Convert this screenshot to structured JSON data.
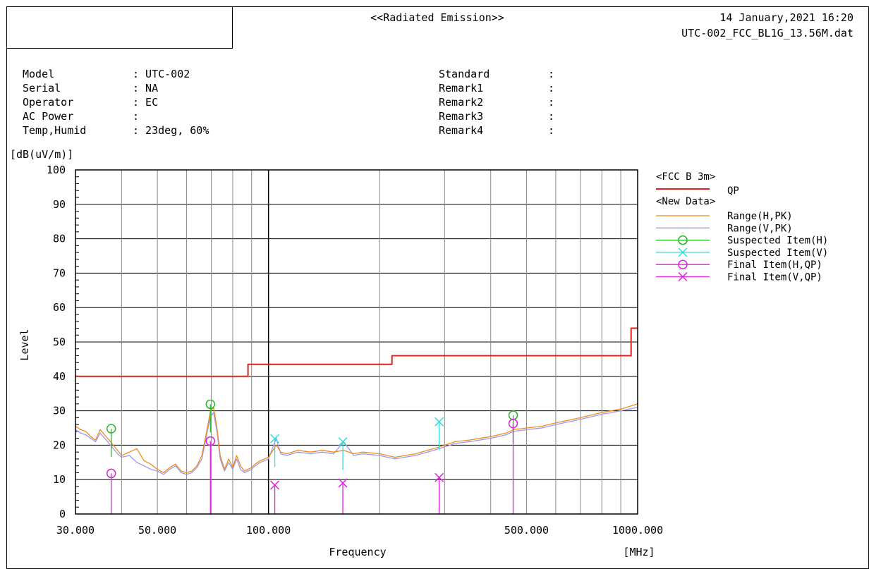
{
  "header": {
    "title": "<<Radiated Emission>>",
    "date": "14 January,2021 16:20",
    "file": "UTC-002_FCC_BL1G_13.56M.dat"
  },
  "info_left": [
    {
      "label": "Model",
      "value": ": UTC-002"
    },
    {
      "label": "Serial",
      "value": ": NA"
    },
    {
      "label": "Operator",
      "value": ": EC"
    },
    {
      "label": "AC Power",
      "value": ":"
    },
    {
      "label": "Temp,Humid",
      "value": ": 23deg, 60%"
    }
  ],
  "info_right": [
    {
      "label": "Standard",
      "value": ":"
    },
    {
      "label": "Remark1",
      "value": ":"
    },
    {
      "label": "Remark2",
      "value": ":"
    },
    {
      "label": "Remark3",
      "value": ":"
    },
    {
      "label": "Remark4",
      "value": ":"
    }
  ],
  "chart_data": {
    "type": "line",
    "xlabel": "Frequency",
    "xunit": "[MHz]",
    "ylabel": "Level",
    "yunit": "[dB(uV/m)]",
    "x_scale": "log",
    "xlim": [
      30,
      1000
    ],
    "ylim": [
      0,
      100
    ],
    "x_tick_labels": [
      "30.000",
      "50.000",
      "100.000",
      "500.000",
      "1000.000"
    ],
    "x_tick_values": [
      30,
      50,
      100,
      500,
      1000
    ],
    "y_ticks": [
      0,
      10,
      20,
      30,
      40,
      50,
      60,
      70,
      80,
      90,
      100
    ],
    "grid": true,
    "legend_position": "right",
    "legend": {
      "limit_header": "<FCC B  3m>",
      "data_header": "<New Data>"
    },
    "colors": {
      "limit": "#e0201c",
      "h_pk": "#f28a1e",
      "v_pk": "#9999ee",
      "suspect_h": "#22bb22",
      "suspect_v": "#33dddd",
      "final": "#dd22dd"
    },
    "limit_line": {
      "name": "QP",
      "x": [
        30,
        88,
        88,
        216,
        216,
        960,
        960,
        1000
      ],
      "y": [
        40.0,
        40.0,
        43.5,
        43.5,
        46.0,
        46.0,
        54.0,
        54.0
      ]
    },
    "series": [
      {
        "name": "Range(H,PK)",
        "x": [
          30,
          31,
          32,
          33,
          34,
          35,
          36,
          37,
          38,
          39,
          40,
          42,
          44,
          46,
          48,
          50,
          52,
          54,
          56,
          58,
          60,
          62,
          64,
          66,
          68,
          69.5,
          71,
          72.5,
          74,
          76,
          78,
          80,
          82,
          84,
          86,
          88,
          90,
          92,
          95,
          100,
          105,
          108,
          112,
          120,
          130,
          140,
          150,
          160,
          170,
          180,
          200,
          220,
          250,
          280,
          300,
          320,
          350,
          400,
          440,
          460,
          500,
          550,
          600,
          700,
          800,
          900,
          1000
        ],
        "y": [
          25.5,
          24.5,
          24.0,
          22.5,
          21.5,
          24.5,
          23.0,
          21.5,
          20.0,
          18.5,
          17.0,
          18.0,
          19.0,
          15.5,
          14.5,
          13.0,
          12.0,
          13.5,
          14.5,
          12.5,
          12.0,
          12.5,
          14.0,
          17.0,
          24.0,
          29.5,
          31.0,
          25.0,
          17.0,
          13.0,
          16.0,
          13.5,
          17.0,
          14.0,
          12.5,
          13.0,
          13.5,
          14.5,
          15.5,
          16.5,
          20.0,
          18.0,
          17.5,
          18.5,
          18.0,
          18.5,
          18.0,
          18.5,
          17.5,
          18.0,
          17.5,
          16.5,
          17.5,
          19.0,
          20.0,
          21.0,
          21.5,
          22.5,
          23.5,
          24.5,
          25.0,
          25.5,
          26.5,
          28.0,
          29.5,
          30.5,
          32.0
        ]
      },
      {
        "name": "Range(V,PK)",
        "x": [
          30,
          31,
          32,
          33,
          34,
          35,
          36,
          37,
          38,
          39,
          40,
          42,
          44,
          46,
          48,
          50,
          52,
          54,
          56,
          58,
          60,
          62,
          64,
          66,
          68,
          69.5,
          71,
          72.5,
          74,
          76,
          78,
          80,
          82,
          84,
          86,
          88,
          90,
          92,
          95,
          100,
          105,
          108,
          112,
          120,
          130,
          140,
          150,
          160,
          170,
          180,
          200,
          220,
          250,
          280,
          300,
          320,
          350,
          400,
          440,
          460,
          500,
          550,
          600,
          700,
          800,
          900,
          1000
        ],
        "y": [
          24.5,
          23.5,
          23.0,
          22.0,
          21.0,
          23.5,
          22.0,
          20.5,
          19.0,
          17.5,
          16.5,
          17.0,
          15.0,
          14.0,
          13.0,
          12.5,
          11.5,
          13.0,
          14.0,
          12.0,
          11.5,
          12.0,
          13.5,
          16.0,
          23.0,
          28.0,
          29.5,
          24.0,
          16.0,
          12.5,
          15.0,
          13.0,
          16.0,
          13.0,
          12.0,
          12.5,
          13.0,
          14.0,
          15.0,
          16.0,
          22.0,
          17.5,
          17.0,
          18.0,
          17.5,
          18.0,
          17.5,
          21.0,
          17.0,
          17.5,
          17.0,
          16.0,
          17.0,
          18.5,
          19.5,
          20.5,
          21.0,
          22.0,
          23.0,
          24.0,
          24.5,
          25.0,
          26.0,
          27.5,
          29.0,
          30.0,
          31.0
        ]
      },
      {
        "name": "Suspected Item(H)",
        "marker": "circle",
        "points": [
          [
            37.5,
            24.8
          ],
          [
            69.6,
            31.9
          ],
          [
            460,
            28.7
          ]
        ]
      },
      {
        "name": "Suspected Item(V)",
        "marker": "x",
        "points": [
          [
            104,
            21.9
          ],
          [
            159,
            21.0
          ],
          [
            290,
            26.8
          ]
        ]
      },
      {
        "name": "Final Item(H,QP)",
        "marker": "circle",
        "points": [
          [
            37.5,
            11.8
          ],
          [
            69.6,
            21.2
          ],
          [
            460,
            26.3
          ]
        ]
      },
      {
        "name": "Final Item(V,QP)",
        "marker": "x",
        "points": [
          [
            104,
            8.4
          ],
          [
            159,
            9.0
          ],
          [
            290,
            10.6
          ]
        ]
      }
    ]
  }
}
